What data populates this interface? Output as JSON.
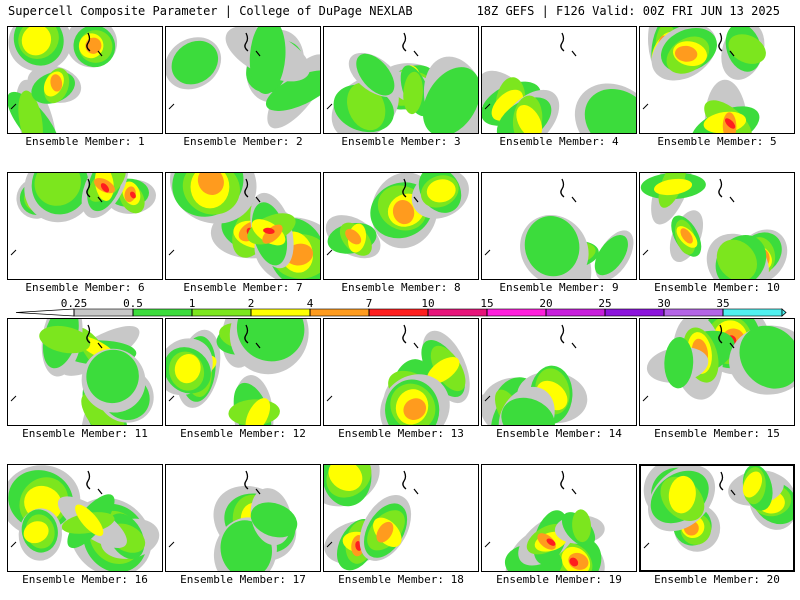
{
  "header": {
    "title_left": "Supercell Composite Parameter | College of DuPage NEXLAB",
    "title_right": "18Z GEFS | F126 Valid: 00Z FRI JUN 13 2025"
  },
  "colorbar": {
    "labels": [
      "0.25",
      "0.5",
      "1",
      "2",
      "4",
      "7",
      "10",
      "15",
      "20",
      "25",
      "30",
      "35"
    ],
    "colors": [
      "#c8c8c8",
      "#3cdc3c",
      "#7ce61e",
      "#ffff00",
      "#ff9b1e",
      "#ff1e1e",
      "#e6147a",
      "#ff1edc",
      "#c81edc",
      "#8c14dc",
      "#b464e6",
      "#50f0f0"
    ]
  },
  "members": [
    {
      "label": "Ensemble Member: 1",
      "intensity": 4,
      "selected": false
    },
    {
      "label": "Ensemble Member: 2",
      "intensity": 1,
      "selected": false
    },
    {
      "label": "Ensemble Member: 3",
      "intensity": 4,
      "selected": false
    },
    {
      "label": "Ensemble Member: 4",
      "intensity": 3,
      "selected": false
    },
    {
      "label": "Ensemble Member: 5",
      "intensity": 5,
      "selected": false
    },
    {
      "label": "Ensemble Member: 6",
      "intensity": 5,
      "selected": false
    },
    {
      "label": "Ensemble Member: 7",
      "intensity": 5,
      "selected": false
    },
    {
      "label": "Ensemble Member: 8",
      "intensity": 4,
      "selected": false
    },
    {
      "label": "Ensemble Member: 9",
      "intensity": 5,
      "selected": false
    },
    {
      "label": "Ensemble Member: 10",
      "intensity": 4,
      "selected": false
    },
    {
      "label": "Ensemble Member: 11",
      "intensity": 3,
      "selected": false
    },
    {
      "label": "Ensemble Member: 12",
      "intensity": 3,
      "selected": false
    },
    {
      "label": "Ensemble Member: 13",
      "intensity": 5,
      "selected": false
    },
    {
      "label": "Ensemble Member: 14",
      "intensity": 4,
      "selected": false
    },
    {
      "label": "Ensemble Member: 15",
      "intensity": 5,
      "selected": false
    },
    {
      "label": "Ensemble Member: 16",
      "intensity": 3,
      "selected": false
    },
    {
      "label": "Ensemble Member: 17",
      "intensity": 4,
      "selected": false
    },
    {
      "label": "Ensemble Member: 18",
      "intensity": 5,
      "selected": false
    },
    {
      "label": "Ensemble Member: 19",
      "intensity": 5,
      "selected": false
    },
    {
      "label": "Ensemble Member: 20",
      "intensity": 4,
      "selected": true
    }
  ]
}
